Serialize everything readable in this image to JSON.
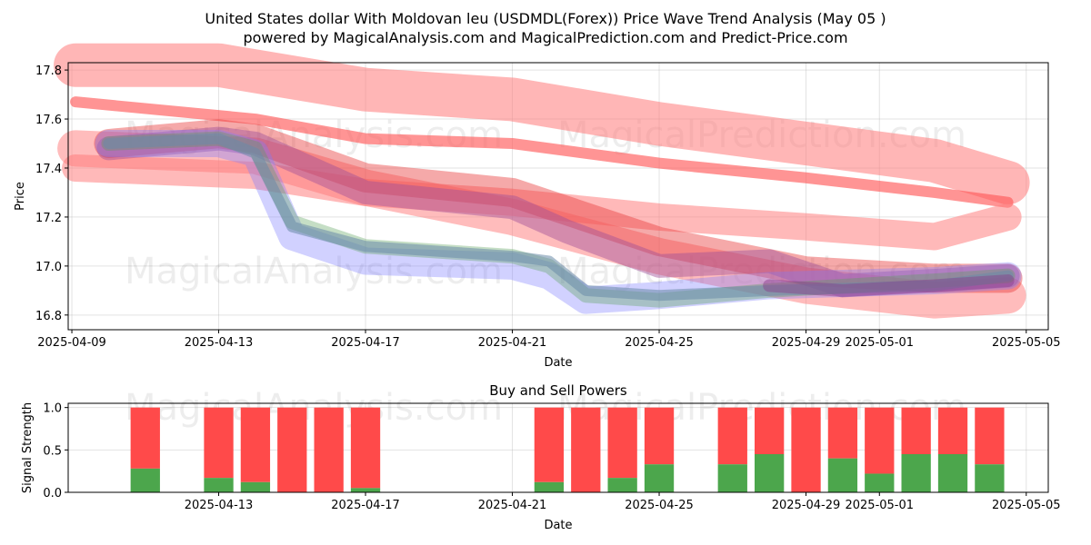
{
  "header": {
    "title": "United States dollar With Moldovan leu (USDMDL(Forex)) Price Wave Trend Analysis (May 05 )",
    "subtitle": "powered by MagicalAnalysis.com and MagicalPrediction.com and Predict-Price.com"
  },
  "watermarks": {
    "left": "MagicalAnalysis.com",
    "right": "MagicalPrediction.com"
  },
  "chart_data": [
    {
      "type": "line",
      "title": "",
      "xlabel": "Date",
      "ylabel": "Price",
      "x_start": "2025-04-09",
      "x_end": "2025-05-05",
      "xlim_days": [
        -0.1,
        26.6
      ],
      "ylim": [
        16.74,
        17.83
      ],
      "grid": true,
      "x_ticks": [
        {
          "day": 0,
          "label": "2025-04-09"
        },
        {
          "day": 4,
          "label": "2025-04-13"
        },
        {
          "day": 8,
          "label": "2025-04-17"
        },
        {
          "day": 12,
          "label": "2025-04-21"
        },
        {
          "day": 16,
          "label": "2025-04-25"
        },
        {
          "day": 20,
          "label": "2025-04-29"
        },
        {
          "day": 22,
          "label": "2025-05-01"
        },
        {
          "day": 26,
          "label": "2025-05-05"
        }
      ],
      "y_ticks": [
        {
          "value": 16.8,
          "label": "16.8"
        },
        {
          "value": 17.0,
          "label": "17.0"
        },
        {
          "value": 17.2,
          "label": "17.2"
        },
        {
          "value": 17.4,
          "label": "17.4"
        },
        {
          "value": 17.6,
          "label": "17.6"
        },
        {
          "value": 17.8,
          "label": "17.8"
        }
      ],
      "series": [
        {
          "name": "upper-band",
          "color": "#ff7a7a",
          "opacity": 0.55,
          "width": 48,
          "x": [
            0.1,
            4,
            8,
            12,
            16,
            20,
            23.5,
            25.5
          ],
          "values": [
            17.82,
            17.82,
            17.72,
            17.68,
            17.58,
            17.5,
            17.43,
            17.34
          ]
        },
        {
          "name": "trend-upper",
          "color": "#ff5a5a",
          "opacity": 0.65,
          "width": 12,
          "x": [
            0.1,
            5,
            8,
            12,
            16,
            20,
            23.5,
            25.5
          ],
          "values": [
            17.67,
            17.6,
            17.52,
            17.5,
            17.42,
            17.36,
            17.3,
            17.26
          ]
        },
        {
          "name": "mid-band",
          "color": "#ff8080",
          "opacity": 0.55,
          "width": 30,
          "x": [
            0.1,
            5,
            8,
            12,
            16,
            20,
            23.5,
            25.5
          ],
          "values": [
            17.4,
            17.37,
            17.3,
            17.26,
            17.2,
            17.16,
            17.12,
            17.2
          ]
        },
        {
          "name": "lower-band",
          "color": "#ff7a7a",
          "opacity": 0.5,
          "width": 40,
          "x": [
            0.1,
            5,
            8,
            12,
            16,
            20,
            23.5,
            25.5
          ],
          "values": [
            17.48,
            17.45,
            17.32,
            17.2,
            17.04,
            16.92,
            16.86,
            16.88
          ]
        },
        {
          "name": "wave-red",
          "color": "#e84040",
          "opacity": 0.45,
          "width": 32,
          "x": [
            1,
            4,
            5,
            8,
            12,
            13,
            16,
            20,
            23.5,
            25.5
          ],
          "values": [
            17.5,
            17.54,
            17.52,
            17.36,
            17.3,
            17.25,
            17.1,
            16.98,
            16.95,
            16.95
          ]
        },
        {
          "name": "wave-purple",
          "color": "#a0509a",
          "opacity": 0.45,
          "width": 26,
          "x": [
            1,
            4,
            5,
            8,
            12,
            13.5,
            16,
            19,
            21,
            23.5,
            25.5
          ],
          "values": [
            17.48,
            17.52,
            17.5,
            17.3,
            17.24,
            17.14,
            17.0,
            17.02,
            16.92,
            16.94,
            16.96
          ]
        },
        {
          "name": "wave-blue",
          "color": "#7a7aff",
          "opacity": 0.35,
          "width": 30,
          "x": [
            1,
            4,
            5,
            6,
            8,
            12,
            13,
            14,
            16,
            19,
            23.5,
            25.5
          ],
          "values": [
            17.5,
            17.5,
            17.46,
            17.12,
            17.02,
            17.0,
            16.96,
            16.86,
            16.88,
            16.92,
            16.94,
            16.96
          ]
        },
        {
          "name": "wave-green",
          "color": "#5aa05a",
          "opacity": 0.35,
          "width": 16,
          "x": [
            1,
            4,
            5,
            6,
            8,
            12,
            13,
            14,
            16,
            19,
            23.5,
            25.5
          ],
          "values": [
            17.5,
            17.52,
            17.48,
            17.18,
            17.08,
            17.04,
            17.0,
            16.88,
            16.86,
            16.9,
            16.94,
            16.96
          ]
        },
        {
          "name": "wave-slate",
          "color": "#6a8aa8",
          "opacity": 0.55,
          "width": 12,
          "x": [
            1,
            4,
            5,
            6,
            8,
            12,
            13,
            14,
            16,
            19,
            23.5,
            25.5
          ],
          "values": [
            17.5,
            17.52,
            17.46,
            17.16,
            17.08,
            17.04,
            17.02,
            16.9,
            16.88,
            16.9,
            16.92,
            16.96
          ]
        },
        {
          "name": "wave-violet",
          "color": "#8a3a8a",
          "opacity": 0.45,
          "width": 14,
          "x": [
            19,
            21,
            23.5,
            25.5
          ],
          "values": [
            16.92,
            16.9,
            16.92,
            16.94
          ]
        }
      ]
    },
    {
      "type": "bar",
      "title": "Buy and Sell Powers",
      "xlabel": "Date",
      "ylabel": "Signal Strength",
      "xlim_days": [
        -0.1,
        26.6
      ],
      "ylim": [
        0,
        1.05
      ],
      "grid": true,
      "x_ticks": [
        {
          "day": 4,
          "label": "2025-04-13"
        },
        {
          "day": 8,
          "label": "2025-04-17"
        },
        {
          "day": 12,
          "label": "2025-04-21"
        },
        {
          "day": 16,
          "label": "2025-04-25"
        },
        {
          "day": 20,
          "label": "2025-04-29"
        },
        {
          "day": 22,
          "label": "2025-05-01"
        },
        {
          "day": 26,
          "label": "2025-05-05"
        }
      ],
      "y_ticks": [
        {
          "value": 0.0,
          "label": "0.0"
        },
        {
          "value": 0.5,
          "label": "0.5"
        },
        {
          "value": 1.0,
          "label": "1.0"
        }
      ],
      "buy_color": "#4ca64c",
      "sell_color": "#ff4a4a",
      "bars": [
        {
          "date": "2025-04-11",
          "day": 2,
          "buy": 0.28
        },
        {
          "date": "2025-04-13",
          "day": 4,
          "buy": 0.17
        },
        {
          "date": "2025-04-14",
          "day": 5,
          "buy": 0.12
        },
        {
          "date": "2025-04-15",
          "day": 6,
          "buy": 0.0
        },
        {
          "date": "2025-04-16",
          "day": 7,
          "buy": 0.0
        },
        {
          "date": "2025-04-17",
          "day": 8,
          "buy": 0.05
        },
        {
          "date": "2025-04-22",
          "day": 13,
          "buy": 0.12
        },
        {
          "date": "2025-04-23",
          "day": 14,
          "buy": 0.0
        },
        {
          "date": "2025-04-24",
          "day": 15,
          "buy": 0.17
        },
        {
          "date": "2025-04-25",
          "day": 16,
          "buy": 0.33
        },
        {
          "date": "2025-04-27",
          "day": 18,
          "buy": 0.33
        },
        {
          "date": "2025-04-28",
          "day": 19,
          "buy": 0.45
        },
        {
          "date": "2025-04-29",
          "day": 20,
          "buy": 0.0
        },
        {
          "date": "2025-04-30",
          "day": 21,
          "buy": 0.4
        },
        {
          "date": "2025-05-01",
          "day": 22,
          "buy": 0.22
        },
        {
          "date": "2025-05-02",
          "day": 23,
          "buy": 0.45
        },
        {
          "date": "2025-05-03",
          "day": 24,
          "buy": 0.45
        },
        {
          "date": "2025-05-04",
          "day": 25,
          "buy": 0.33
        }
      ]
    }
  ]
}
